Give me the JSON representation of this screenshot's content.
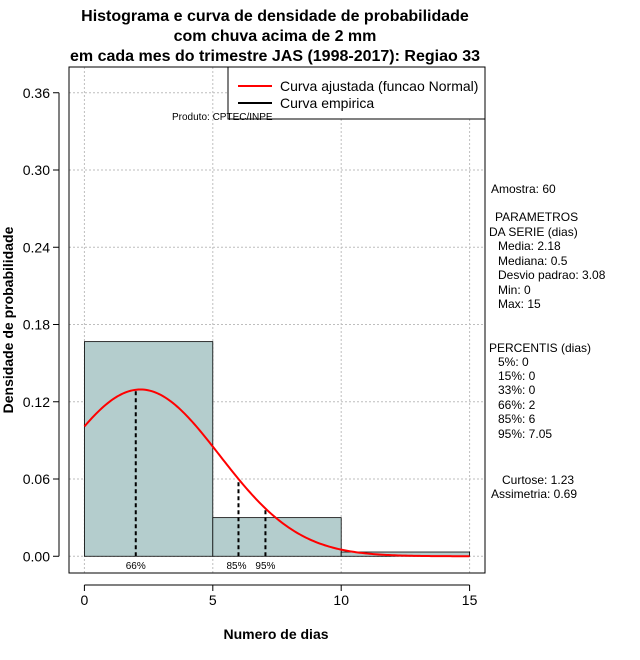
{
  "chart_data": {
    "type": "bar",
    "title_lines": [
      "Histograma e curva de densidade de probabilidade",
      "com chuva acima de 2 mm",
      "em cada mes do trimestre JAS (1998-2017): Regiao 33"
    ],
    "xlabel": "Numero de dias",
    "ylabel": "Densidade de probabilidade",
    "xlim": [
      -0.6,
      15.6
    ],
    "ylim": [
      -0.013,
      0.38
    ],
    "xticks": [
      0,
      5,
      10,
      15
    ],
    "xtick_labels": [
      "0",
      "5",
      "10",
      "15"
    ],
    "yticks": [
      0.0,
      0.06,
      0.12,
      0.18,
      0.24,
      0.3,
      0.36
    ],
    "ytick_labels": [
      "0.00",
      "0.06",
      "0.12",
      "0.18",
      "0.24",
      "0.30",
      "0.36"
    ],
    "grid": true,
    "bins": [
      {
        "start": 0,
        "end": 5,
        "density": 0.1667
      },
      {
        "start": 5,
        "end": 10,
        "density": 0.03
      },
      {
        "start": 10,
        "end": 15,
        "density": 0.0033
      }
    ],
    "fitted_curve": {
      "name": "Curva ajustada (funcao Normal)",
      "color": "#ff0000",
      "distribution": "normal",
      "mean": 2.18,
      "sd": 3.08,
      "x_range": [
        0,
        15
      ]
    },
    "empirical_curve": {
      "name": "Curva empirica",
      "color": "#000000"
    },
    "percentile_markers": [
      {
        "label": "66%",
        "x": 2
      },
      {
        "label": "85%",
        "x": 6
      },
      {
        "label": "95%",
        "x": 7.05
      }
    ],
    "legend_position": "top-right",
    "legend_entries": [
      "Curva ajustada (funcao Normal)",
      "Curva empirica"
    ],
    "source_note": "Produto: CPTEC/INPE"
  },
  "stats": {
    "amostra": "Amostra: 60",
    "parametros_title1": "PARAMETROS",
    "parametros_title2": "DA SERIE (dias)",
    "media": "Media: 2.18",
    "mediana": "Mediana: 0.5",
    "desvio": "Desvio padrao: 3.08",
    "min": "Min: 0",
    "max": "Max: 15",
    "percentis_title": "PERCENTIS (dias)",
    "p5": "5%: 0",
    "p15": "15%: 0",
    "p33": "33%: 0",
    "p66": "66%: 2",
    "p85": "85%: 6",
    "p95": "95%: 7.05",
    "curtose": "Curtose: 1.23",
    "assimetria": "Assimetria: 0.69"
  },
  "colors": {
    "bar_fill": "#b4cdcd",
    "grid": "#bebebe"
  }
}
